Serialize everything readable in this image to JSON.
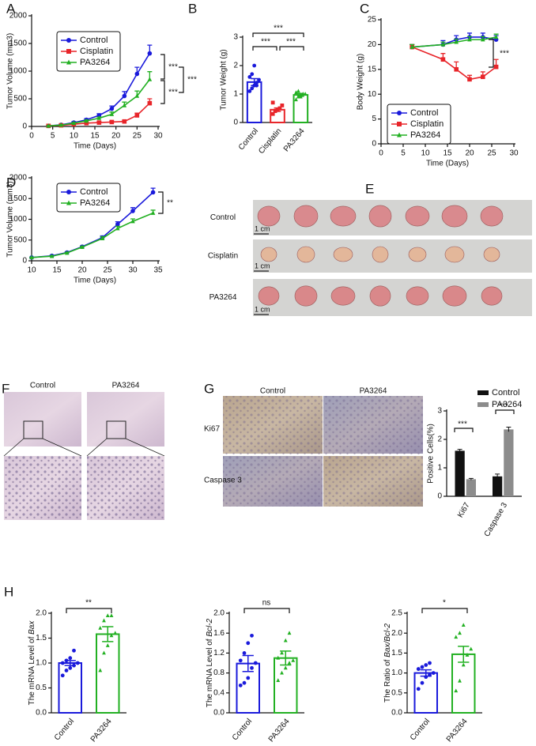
{
  "chart_data": [
    {
      "type": "line",
      "label": "A",
      "xlabel": "Time (Days)",
      "ylabel": "Tumor Volume (mm3)",
      "x": [
        4,
        7,
        10,
        13,
        16,
        19,
        22,
        25,
        28
      ],
      "series": [
        {
          "name": "Control",
          "color": "#1a1adb",
          "marker": "circle",
          "values": [
            10,
            30,
            70,
            120,
            200,
            320,
            550,
            950,
            1320
          ],
          "errors": [
            5,
            10,
            15,
            20,
            30,
            50,
            80,
            120,
            150
          ]
        },
        {
          "name": "Cisplatin",
          "color": "#e8252a",
          "marker": "square",
          "values": [
            10,
            20,
            40,
            60,
            70,
            80,
            90,
            200,
            420
          ],
          "errors": [
            3,
            5,
            10,
            10,
            15,
            15,
            20,
            40,
            80
          ]
        },
        {
          "name": "PA3264",
          "color": "#22b022",
          "marker": "triangle",
          "values": [
            10,
            25,
            60,
            100,
            150,
            220,
            380,
            550,
            850
          ],
          "errors": [
            3,
            5,
            10,
            15,
            20,
            40,
            60,
            90,
            140
          ]
        }
      ],
      "xlim": [
        0,
        30
      ],
      "xticks": [
        0,
        5,
        10,
        15,
        20,
        25,
        30
      ],
      "ylim": [
        0,
        2000
      ],
      "yticks": [
        0,
        500,
        1000,
        1500,
        2000
      ],
      "legend": "upper left",
      "annotations": [
        "***",
        "***",
        "***"
      ]
    },
    {
      "type": "bar",
      "label": "B",
      "ylabel": "Tumor Weight (g)",
      "categories": [
        "Control",
        "Cisplatin",
        "PA3264"
      ],
      "colors": [
        "#1a1adb",
        "#e8252a",
        "#22b022"
      ],
      "markers": [
        "circle",
        "square",
        "triangle"
      ],
      "values": [
        1.42,
        0.45,
        0.97
      ],
      "errors": [
        0.12,
        0.06,
        0.05
      ],
      "points": [
        [
          1.1,
          1.2,
          1.3,
          1.4,
          1.5,
          1.6,
          1.7,
          2.0,
          1.3
        ],
        [
          0.3,
          0.4,
          0.45,
          0.5,
          0.6,
          0.7
        ],
        [
          0.8,
          0.9,
          0.95,
          1.0,
          1.0,
          1.05,
          1.1,
          0.9
        ]
      ],
      "ylim": [
        0,
        3
      ],
      "yticks": [
        0,
        1,
        2,
        3
      ],
      "annotations": [
        "***",
        "***",
        "***"
      ]
    },
    {
      "type": "line",
      "label": "C",
      "xlabel": "Time (Days)",
      "ylabel": "Body Weight (g)",
      "x": [
        7,
        14,
        17,
        20,
        23,
        26
      ],
      "series": [
        {
          "name": "Control",
          "color": "#1a1adb",
          "marker": "circle",
          "values": [
            19.5,
            20,
            21,
            21.5,
            21.5,
            21
          ],
          "errors": [
            0.5,
            0.8,
            0.8,
            0.8,
            0.8,
            0.8
          ]
        },
        {
          "name": "Cisplatin",
          "color": "#e8252a",
          "marker": "square",
          "values": [
            19.5,
            17,
            15,
            13,
            13.5,
            15.5
          ],
          "errors": [
            0.5,
            1.2,
            1.5,
            0.8,
            1.0,
            1.5
          ]
        },
        {
          "name": "PA3264",
          "color": "#22b022",
          "marker": "triangle",
          "values": [
            19.5,
            20,
            20.5,
            21,
            21,
            21.5
          ],
          "errors": [
            0.5,
            0.5,
            0.6,
            0.6,
            0.6,
            0.6
          ]
        }
      ],
      "xlim": [
        0,
        30
      ],
      "xticks": [
        0,
        5,
        10,
        15,
        20,
        25,
        30
      ],
      "ylim": [
        0,
        25
      ],
      "yticks": [
        0,
        5,
        10,
        15,
        20,
        25
      ],
      "legend": "lower left",
      "annotations": [
        "***"
      ]
    },
    {
      "type": "line",
      "label": "D",
      "xlabel": "Time (Days)",
      "ylabel": "Tumor Volume (mm3)",
      "x": [
        10,
        14,
        17,
        20,
        24,
        27,
        30,
        34
      ],
      "series": [
        {
          "name": "Control",
          "color": "#1a1adb",
          "marker": "circle",
          "values": [
            80,
            120,
            200,
            340,
            560,
            880,
            1200,
            1650
          ],
          "errors": [
            5,
            10,
            15,
            20,
            40,
            60,
            80,
            100
          ]
        },
        {
          "name": "PA3264",
          "color": "#22b022",
          "marker": "triangle",
          "values": [
            80,
            110,
            190,
            330,
            540,
            780,
            950,
            1150
          ],
          "errors": [
            5,
            10,
            15,
            20,
            40,
            50,
            60,
            70
          ]
        }
      ],
      "xlim": [
        10,
        35
      ],
      "xticks": [
        10,
        15,
        20,
        25,
        30,
        35
      ],
      "ylim": [
        0,
        2000
      ],
      "yticks": [
        0,
        500,
        1000,
        1500,
        2000
      ],
      "legend": "upper left",
      "annotations": [
        "**"
      ]
    },
    {
      "type": "grouped_bar",
      "ylabel": "Positive Cells(%)",
      "categories": [
        "Ki67",
        "Caspase 3"
      ],
      "series": [
        {
          "name": "Control",
          "color": "#111111",
          "values": [
            1.6,
            0.7
          ],
          "errors": [
            0.05,
            0.08
          ]
        },
        {
          "name": "PA3264",
          "color": "#8c8c8c",
          "values": [
            0.6,
            2.35
          ],
          "errors": [
            0.03,
            0.08
          ]
        }
      ],
      "ylim": [
        0,
        3
      ],
      "yticks": [
        0,
        1,
        2,
        3
      ],
      "legend": "upper right",
      "annotations": [
        "***",
        "***"
      ]
    },
    {
      "type": "bar",
      "label": "H",
      "ylabel_parts": [
        "The mRNA Level of ",
        "Bax"
      ],
      "categories": [
        "Control",
        "PA3264"
      ],
      "colors": [
        "#1a1adb",
        "#22b022"
      ],
      "markers": [
        "circle",
        "triangle"
      ],
      "values": [
        1.0,
        1.58
      ],
      "errors": [
        0.05,
        0.15
      ],
      "points": [
        [
          0.75,
          0.85,
          0.9,
          0.95,
          1.0,
          1.0,
          1.05,
          1.1,
          1.25
        ],
        [
          0.85,
          1.2,
          1.35,
          1.55,
          1.6,
          1.7,
          1.85,
          1.95,
          1.95
        ]
      ],
      "ylim": [
        0,
        2
      ],
      "yticks": [
        {
          "value": 0,
          "label": "0.0"
        },
        0.5,
        {
          "value": 1,
          "label": "1.0"
        },
        1.5,
        {
          "value": 2,
          "label": "2.0"
        }
      ],
      "annotations": [
        "**"
      ]
    },
    {
      "type": "bar",
      "ylabel_parts": [
        "The mRNA Level of ",
        "Bcl-2"
      ],
      "categories": [
        "Control",
        "PA3264"
      ],
      "colors": [
        "#1a1adb",
        "#22b022"
      ],
      "markers": [
        "circle",
        "triangle"
      ],
      "values": [
        0.99,
        1.1
      ],
      "errors": [
        0.16,
        0.14
      ],
      "points": [
        [
          0.55,
          0.6,
          0.7,
          0.9,
          1.0,
          1.05,
          1.2,
          1.4,
          1.55
        ],
        [
          0.65,
          0.8,
          0.9,
          1.0,
          1.05,
          1.1,
          1.2,
          1.45,
          1.6
        ]
      ],
      "ylim": [
        0,
        2
      ],
      "yticks": [
        {
          "value": 0,
          "label": "0.0"
        },
        0.4,
        0.8,
        1.2,
        1.6,
        {
          "value": 2,
          "label": "2.0"
        }
      ],
      "annotations": [
        "ns"
      ]
    },
    {
      "type": "bar",
      "ylabel_parts": [
        "The Ratio of ",
        "Bax/Bcl-2"
      ],
      "categories": [
        "Control",
        "PA3264"
      ],
      "colors": [
        "#1a1adb",
        "#22b022"
      ],
      "markers": [
        "circle",
        "triangle"
      ],
      "values": [
        1.0,
        1.47
      ],
      "errors": [
        0.08,
        0.2
      ],
      "points": [
        [
          0.6,
          0.75,
          0.9,
          0.95,
          1.0,
          1.1,
          1.15,
          1.2,
          1.25
        ],
        [
          0.55,
          0.8,
          1.2,
          1.45,
          1.6,
          1.9,
          2.0,
          2.2
        ]
      ],
      "ylim": [
        0,
        2.5
      ],
      "yticks": [
        {
          "value": 0,
          "label": "0.0"
        },
        0.5,
        {
          "value": 1,
          "label": "1.0"
        },
        1.5,
        {
          "value": 2,
          "label": "2.0"
        },
        2.5
      ],
      "annotations": [
        "*"
      ]
    }
  ],
  "panels": {
    "E": {
      "label": "E",
      "rows": [
        "Control",
        "Cisplatin",
        "PA3264"
      ],
      "scale": "1 cm"
    },
    "F": {
      "label": "F",
      "columns": [
        "Control",
        "PA3264"
      ]
    },
    "G": {
      "label": "G",
      "columns": [
        "Control",
        "PA3264"
      ],
      "rows": [
        "Ki67",
        "Caspase 3"
      ]
    }
  }
}
